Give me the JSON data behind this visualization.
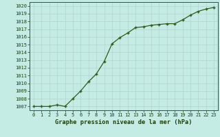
{
  "x": [
    0,
    1,
    2,
    3,
    4,
    5,
    6,
    7,
    8,
    9,
    10,
    11,
    12,
    13,
    14,
    15,
    16,
    17,
    18,
    19,
    20,
    21,
    22,
    23
  ],
  "y": [
    1007.0,
    1007.0,
    1007.0,
    1007.2,
    1007.0,
    1008.0,
    1009.0,
    1010.2,
    1011.2,
    1012.8,
    1015.1,
    1015.9,
    1016.5,
    1017.2,
    1017.3,
    1017.5,
    1017.6,
    1017.7,
    1017.7,
    1018.2,
    1018.8,
    1019.3,
    1019.6,
    1019.8
  ],
  "line_color": "#2d5a1b",
  "marker_color": "#2d5a1b",
  "bg_color": "#c5ece4",
  "grid_color": "#b0d4cc",
  "xlabel": "Graphe pression niveau de la mer (hPa)",
  "xlabel_color": "#1a3d0d",
  "tick_color": "#1a3d0d",
  "ylim_min": 1006.5,
  "ylim_max": 1020.5,
  "xlim_min": -0.5,
  "xlim_max": 23.5,
  "yticks": [
    1007,
    1008,
    1009,
    1010,
    1011,
    1012,
    1013,
    1014,
    1015,
    1016,
    1017,
    1018,
    1019,
    1020
  ],
  "xticks": [
    0,
    1,
    2,
    3,
    4,
    5,
    6,
    7,
    8,
    9,
    10,
    11,
    12,
    13,
    14,
    15,
    16,
    17,
    18,
    19,
    20,
    21,
    22,
    23
  ]
}
